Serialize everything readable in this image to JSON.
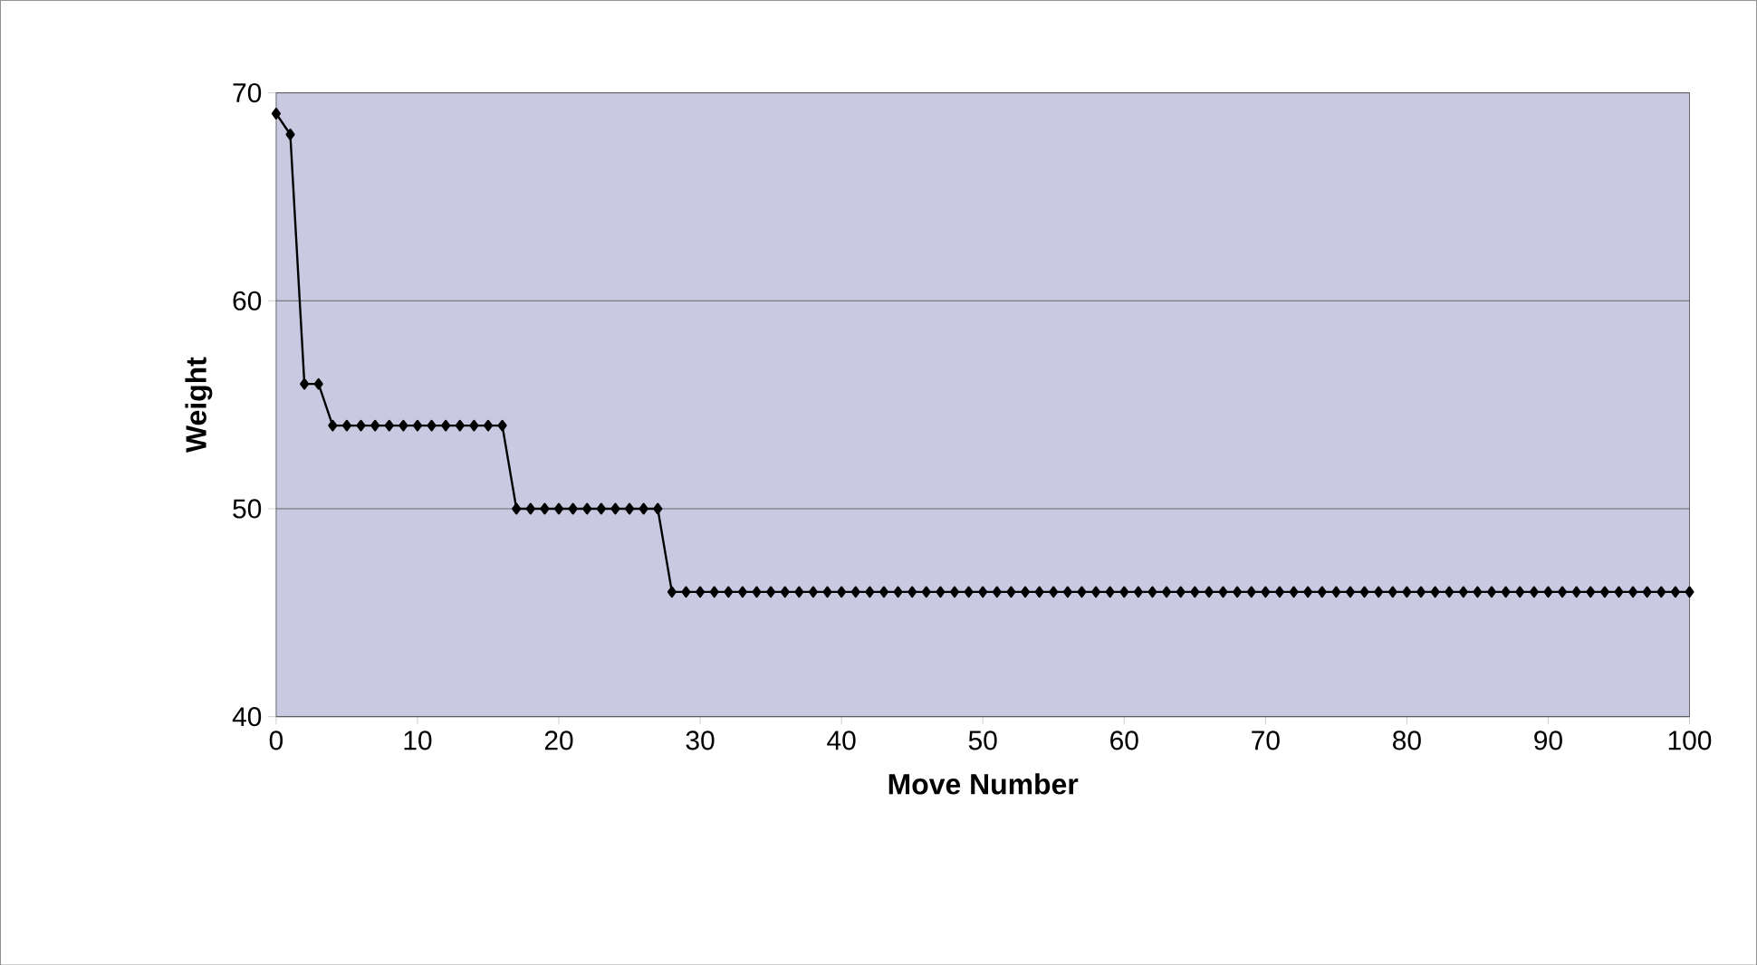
{
  "chart_data": {
    "type": "line",
    "xlabel": "Move Number",
    "ylabel": "Weight",
    "x": [
      0,
      1,
      2,
      3,
      4,
      5,
      6,
      7,
      8,
      9,
      10,
      11,
      12,
      13,
      14,
      15,
      16,
      17,
      18,
      19,
      20,
      21,
      22,
      23,
      24,
      25,
      26,
      27,
      28,
      29,
      30,
      31,
      32,
      33,
      34,
      35,
      36,
      37,
      38,
      39,
      40,
      41,
      42,
      43,
      44,
      45,
      46,
      47,
      48,
      49,
      50,
      51,
      52,
      53,
      54,
      55,
      56,
      57,
      58,
      59,
      60,
      61,
      62,
      63,
      64,
      65,
      66,
      67,
      68,
      69,
      70,
      71,
      72,
      73,
      74,
      75,
      76,
      77,
      78,
      79,
      80,
      81,
      82,
      83,
      84,
      85,
      86,
      87,
      88,
      89,
      90,
      91,
      92,
      93,
      94,
      95,
      96,
      97,
      98,
      99,
      100
    ],
    "series": [
      {
        "color": "#000000",
        "values": [
          69,
          68,
          56,
          56,
          54,
          54,
          54,
          54,
          54,
          54,
          54,
          54,
          54,
          54,
          54,
          54,
          54,
          50,
          50,
          50,
          50,
          50,
          50,
          50,
          50,
          50,
          50,
          50,
          46,
          46,
          46,
          46,
          46,
          46,
          46,
          46,
          46,
          46,
          46,
          46,
          46,
          46,
          46,
          46,
          46,
          46,
          46,
          46,
          46,
          46,
          46,
          46,
          46,
          46,
          46,
          46,
          46,
          46,
          46,
          46,
          46,
          46,
          46,
          46,
          46,
          46,
          46,
          46,
          46,
          46,
          46,
          46,
          46,
          46,
          46,
          46,
          46,
          46,
          46,
          46,
          46,
          46,
          46,
          46,
          46,
          46,
          46,
          46,
          46,
          46,
          46,
          46,
          46,
          46,
          46,
          46,
          46,
          46,
          46,
          46,
          46
        ]
      }
    ],
    "xlim": [
      0,
      100
    ],
    "xticks": [
      0,
      10,
      20,
      30,
      40,
      50,
      60,
      70,
      80,
      90,
      100
    ],
    "ylim": [
      40,
      70
    ],
    "yticks": [
      40,
      50,
      60,
      70
    ],
    "grid": "y",
    "marker": "diamond",
    "line_style": "solid"
  }
}
